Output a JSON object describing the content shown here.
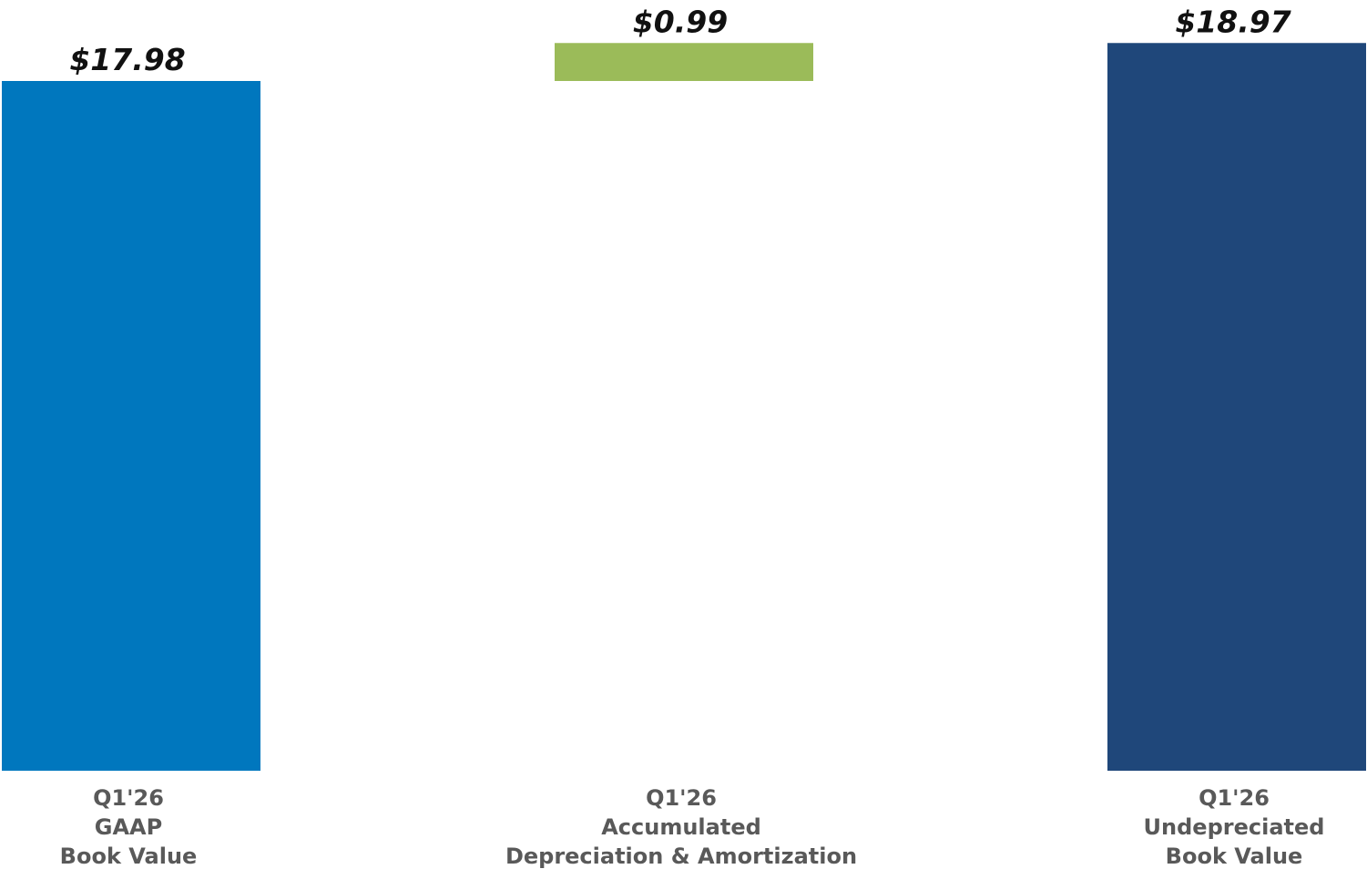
{
  "chart_data": {
    "type": "waterfall",
    "categories": [
      [
        "Q1'26",
        "GAAP",
        "Book Value"
      ],
      [
        "Q1'26",
        "Accumulated",
        "Depreciation & Amortization"
      ],
      [
        "Q1'26",
        "Undepreciated",
        "Book Value"
      ]
    ],
    "values": [
      17.98,
      0.99,
      18.97
    ],
    "value_labels": [
      "$17.98",
      "$0.99",
      "$18.97"
    ],
    "measure": [
      "absolute",
      "relative",
      "total"
    ],
    "colors": [
      "#0077be",
      "#9bbb59",
      "#1f477a"
    ],
    "ylim": [
      0,
      19
    ]
  }
}
